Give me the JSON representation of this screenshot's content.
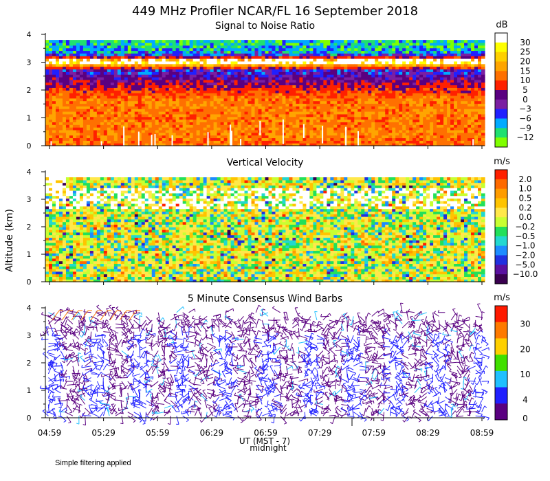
{
  "figure": {
    "title": "449 MHz Profiler NCAR/FL 16 September 2018",
    "ylabel": "Altitude (km)",
    "xlabel": "UT (MST - 7)",
    "xlabel_extra": "midnight",
    "note": "Simple filtering applied",
    "time_ticks": [
      "04:59",
      "05:29",
      "05:59",
      "06:29",
      "06:59",
      "07:29",
      "07:59",
      "08:29",
      "08:59"
    ]
  },
  "chart_data": [
    {
      "type": "heatmap",
      "title": "Signal to Noise Ratio",
      "unit": "dB",
      "ylim": [
        0,
        4
      ],
      "y_ticks": [
        "0",
        "1",
        "2",
        "3",
        "4"
      ],
      "colorbar_labels": [
        "30",
        "25",
        "20",
        "15",
        "10",
        "5",
        "0",
        "−3",
        "−6",
        "−9",
        "−12"
      ],
      "colorbar_colors": [
        "#ffffff",
        "#ffff00",
        "#ffd000",
        "#ffa500",
        "#ff7000",
        "#ff2000",
        "#5a0080",
        "#7b1fa2",
        "#2020ff",
        "#00aaff",
        "#20e070",
        "#80ff00"
      ],
      "profile": [
        {
          "alt": 0.1,
          "value": 12
        },
        {
          "alt": 0.5,
          "value": 14
        },
        {
          "alt": 1.0,
          "value": 13
        },
        {
          "alt": 1.5,
          "value": 14
        },
        {
          "alt": 1.8,
          "value": 11
        },
        {
          "alt": 2.1,
          "value": 6
        },
        {
          "alt": 2.4,
          "value": 1
        },
        {
          "alt": 2.7,
          "value": -4
        },
        {
          "alt": 3.0,
          "value": 28
        },
        {
          "alt": 3.3,
          "value": -7
        },
        {
          "alt": 3.7,
          "value": -10
        }
      ]
    },
    {
      "type": "heatmap",
      "title": "Vertical Velocity",
      "unit": "m/s",
      "ylim": [
        0,
        4
      ],
      "y_ticks": [
        "0",
        "1",
        "2",
        "3",
        "4"
      ],
      "colorbar_labels": [
        "2.0",
        "1.0",
        "0.5",
        "0.2",
        "0.0",
        "−0.2",
        "−0.5",
        "−1.0",
        "−2.0",
        "−5.0",
        "−10.0"
      ],
      "colorbar_colors": [
        "#ff2000",
        "#ff6a00",
        "#ff9c00",
        "#ffc400",
        "#ffe84a",
        "#c8ff32",
        "#22e05a",
        "#22d8d0",
        "#1c8cff",
        "#2030e0",
        "#5a10a0",
        "#3a0050"
      ],
      "missing_band_km": [
        2.6,
        3.4
      ]
    },
    {
      "type": "scatter",
      "title": "5 Minute Consensus Wind Barbs",
      "unit": "m/s",
      "ylim": [
        0,
        4
      ],
      "y_ticks": [
        "0",
        "1",
        "2",
        "3",
        "4"
      ],
      "colorbar_labels": [
        "30",
        "20",
        "10",
        "4",
        "0"
      ],
      "colorbar_colors": [
        "#ff1a00",
        "#ff7a00",
        "#ffd000",
        "#40e000",
        "#20c0ff",
        "#2020ff",
        "#5a0080"
      ]
    }
  ]
}
